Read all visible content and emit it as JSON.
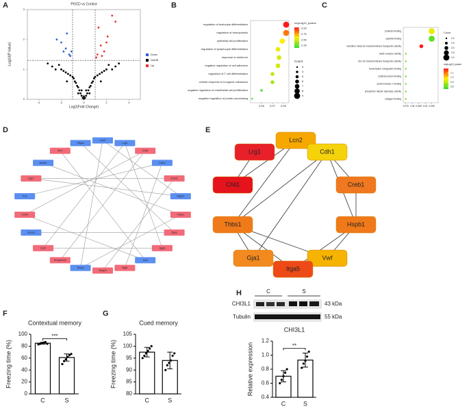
{
  "chart_data": [
    {
      "type": "scatter",
      "panel": "A",
      "title": "POCD vs Control",
      "xlabel": "Log2(Fold Change)",
      "ylabel": "-Log10(P Value)",
      "xlim": [
        -5,
        5
      ],
      "ylim": [
        0,
        3
      ],
      "xticks": [
        -4,
        -2,
        0,
        2,
        4
      ],
      "yticks": [
        0,
        1,
        2,
        3
      ],
      "thresholds_x": [
        -1,
        1
      ],
      "threshold_y": 1.3,
      "legend": "right",
      "series": [
        {
          "name": "Down",
          "color": "#2f5fd0",
          "x": [
            -1.3,
            -1.6,
            -2.0,
            -1.2,
            -1.8,
            -2.4,
            -1.5,
            -1.1
          ],
          "y": [
            1.5,
            1.7,
            1.9,
            1.45,
            1.6,
            2.0,
            2.2,
            1.6
          ]
        },
        {
          "name": "NoDiff",
          "color": "#000000",
          "x": [
            -3.2,
            -2.8,
            -2.5,
            -2.2,
            -2,
            -1.8,
            -1.6,
            -1.4,
            -1.2,
            -1,
            -0.9,
            -0.8,
            -0.7,
            -0.6,
            -0.5,
            -0.4,
            -0.3,
            -0.2,
            -0.1,
            0,
            0.1,
            0.2,
            0.3,
            0.4,
            0.5,
            0.6,
            0.7,
            0.8,
            0.9,
            1,
            1.2,
            1.4,
            1.6,
            1.8,
            2,
            2.2,
            2.5,
            2.8,
            3.1,
            -1.5,
            -0.5,
            0.5,
            1.5,
            0,
            -0.2,
            0.2
          ],
          "y": [
            1.2,
            1.1,
            1.0,
            1.15,
            1.0,
            0.95,
            0.9,
            0.85,
            0.8,
            0.75,
            0.7,
            0.6,
            0.55,
            0.45,
            0.4,
            0.3,
            0.2,
            0.12,
            0.05,
            0.02,
            0.05,
            0.12,
            0.2,
            0.3,
            0.4,
            0.45,
            0.55,
            0.6,
            0.7,
            0.75,
            0.8,
            0.85,
            0.9,
            0.95,
            1.0,
            1.15,
            1.0,
            1.1,
            1.2,
            0.6,
            0.2,
            0.2,
            0.6,
            0.1,
            0.3,
            0.3
          ]
        },
        {
          "name": "Up",
          "color": "#e8312f",
          "x": [
            1.2,
            1.5,
            1.8,
            2.1,
            1.3,
            2.5,
            1.6,
            1.1,
            2.8,
            2.0
          ],
          "y": [
            1.5,
            1.8,
            1.6,
            2.1,
            2.4,
            2.8,
            1.45,
            1.4,
            2.6,
            1.9
          ]
        }
      ]
    },
    {
      "type": "dot",
      "panel": "B",
      "categories": [
        "regulation of leukocyte differentiation",
        "regulation of hemopoiesis",
        "epithelial cell proliferation",
        "regulation of lymphocyte differentiation",
        "response to metal ion",
        "negative regulation of cell adhesion",
        "regulation of T cell differentiation",
        "cellular response to inorganic substance",
        "negative regulation of endothelial cell proliferation",
        "negative regulation of protein processing"
      ],
      "values": [
        0.095,
        0.095,
        0.088,
        0.08,
        0.082,
        0.08,
        0.07,
        0.07,
        0.05,
        0.033
      ],
      "qvalues": [
        3.05,
        2.85,
        2.6,
        2.55,
        2.5,
        2.5,
        2.45,
        2.4,
        2.2,
        2.15
      ],
      "counts": [
        9,
        9,
        8,
        7,
        7,
        7,
        6,
        6,
        4,
        3
      ],
      "xlim": [
        0.03,
        0.1
      ],
      "xticks": [
        0.05,
        0.07,
        0.09
      ],
      "clim": [
        2.15,
        3.05
      ],
      "colors": [
        "#33dd33",
        "#ffee00",
        "#ff1a1a"
      ],
      "color_title": "negLog10_qvalue",
      "color_ticks": [
        2.25,
        {
          "value": 2.5,
          "label": "2.50"
        },
        2.75,
        {
          "value": 3,
          "label": "3.00"
        }
      ],
      "size_title": "Count",
      "size_ticks": [
        3,
        4,
        5,
        6,
        7,
        8,
        9
      ]
    },
    {
      "type": "dot",
      "panel": "C",
      "categories": [
        "prolactin binding",
        "peptide binding",
        "transition metal ion transmembrane transporter activity",
        "death receptor activity",
        "zinc ion transmembrane transporter activity",
        "transcription coregulator binding",
        "scaffold protein binding",
        "protein kinase C binding",
        "phosphoric diester hydrolase activity",
        "collagen binding"
      ],
      "values": [
        0.095,
        0.095,
        0.087,
        0.075,
        0.075,
        0.075,
        0.075,
        0.075,
        0.075,
        0.075
      ],
      "qvalues": [
        0.95,
        0.8,
        1.2,
        0.8,
        0.8,
        0.8,
        0.8,
        0.8,
        0.8,
        0.8
      ],
      "counts": [
        4,
        4,
        3,
        2,
        2,
        2,
        2,
        2,
        2,
        2
      ],
      "xlim": [
        0.073,
        0.1
      ],
      "xticks": [
        0.075,
        0.08,
        0.085,
        0.09,
        0.095
      ],
      "clim": [
        0.75,
        1.2
      ],
      "colors": [
        "#33dd33",
        "#ffee00",
        "#ff1a1a"
      ],
      "color_title": "negLog10_qvalue",
      "color_ticks": [
        0.8,
        0.9,
        {
          "value": 1,
          "label": "1.0"
        },
        1.1
      ],
      "size_title": "Count",
      "size_ticks": [
        {
          "value": 2,
          "label": "2.0"
        },
        2.5,
        {
          "value": 3,
          "label": "3.0"
        },
        3.5,
        {
          "value": 4,
          "label": "4.0"
        }
      ]
    },
    {
      "type": "bar",
      "panel": "F",
      "title": "Contextual memory",
      "ylabel": "Freezing time (%)",
      "categories": [
        "C",
        "S"
      ],
      "values": [
        85,
        61
      ],
      "errors": [
        1.5,
        6
      ],
      "points": [
        [
          83,
          84,
          85,
          86,
          87,
          84
        ],
        [
          50,
          55,
          58,
          62,
          65,
          67
        ]
      ],
      "ylim": [
        0,
        100
      ],
      "yticks": [
        0,
        20,
        40,
        60,
        80,
        100
      ],
      "significance": "***",
      "color": "#ffffff"
    },
    {
      "type": "bar",
      "panel": "G",
      "title": "Cued memory",
      "ylabel": "Freezing time (%)",
      "categories": [
        "C",
        "S"
      ],
      "values": [
        97.5,
        94
      ],
      "errors": [
        2,
        3.5
      ],
      "points": [
        [
          95,
          96,
          97,
          98,
          99,
          100
        ],
        [
          90,
          92,
          93,
          94,
          96,
          97
        ]
      ],
      "ylim": [
        80,
        105
      ],
      "yticks": [
        80,
        85,
        90,
        95,
        100,
        105
      ],
      "color": "#ffffff"
    },
    {
      "type": "bar",
      "panel": "H",
      "title": "CHI3L1",
      "ylabel": "Relative expression",
      "categories": [
        "C",
        "S"
      ],
      "values": [
        0.7,
        0.93
      ],
      "errors": [
        0.08,
        0.1
      ],
      "points": [
        [
          0.6,
          0.65,
          0.7,
          0.75,
          0.8
        ],
        [
          0.82,
          0.88,
          0.92,
          0.98,
          1.05
        ]
      ],
      "ylim": [
        0.4,
        1.2
      ],
      "yticks": [
        0.4,
        0.6,
        0.8,
        {
          "value": 1,
          "label": "1.0"
        },
        1.2
      ],
      "significance": "**",
      "color": "#ffffff",
      "blot": {
        "proteins": [
          "CHI3L1",
          "Tubulin"
        ],
        "sizes": [
          "43 kDa",
          "55 kDa"
        ],
        "lanes": [
          "C",
          "S"
        ]
      }
    }
  ],
  "diagrams": [
    {
      "panel": "D",
      "nodes": [
        {
          "label": "Lcn2",
          "color": "#5b8ff0"
        },
        {
          "label": "Lrg1",
          "color": "#5b8ff0"
        },
        {
          "label": "Chil1",
          "color": "#f26b78"
        },
        {
          "label": "Cdh1",
          "color": "#5b8ff0"
        },
        {
          "label": "Creb1",
          "color": "#f26b78"
        },
        {
          "label": "Hspb1",
          "color": "#5b8ff0"
        },
        {
          "label": "Thbs1",
          "color": "#f26b78"
        },
        {
          "label": "Gja1",
          "color": "#f26b78"
        },
        {
          "label": "Itga5",
          "color": "#f26b78"
        },
        {
          "label": "Vwf",
          "color": "#5b8ff0"
        },
        {
          "label": "Ngfr",
          "color": "#f26b78"
        },
        {
          "label": "Mmp3",
          "color": "#f26b78"
        },
        {
          "label": "Timp1",
          "color": "#5b8ff0"
        },
        {
          "label": "Serpina3n",
          "color": "#f26b78"
        },
        {
          "label": "Ccl2",
          "color": "#f26b78"
        },
        {
          "label": "Socs3",
          "color": "#5b8ff0"
        },
        {
          "label": "Cd44",
          "color": "#f26b78"
        },
        {
          "label": "Fos",
          "color": "#5b8ff0"
        },
        {
          "label": "Egr2",
          "color": "#f26b78"
        },
        {
          "label": "Nr4a1",
          "color": "#5b8ff0"
        },
        {
          "label": "Il1r1",
          "color": "#f26b78"
        },
        {
          "label": "Ptgs2",
          "color": "#5b8ff0"
        }
      ],
      "edges": [
        [
          0,
          5
        ],
        [
          1,
          8
        ],
        [
          2,
          13
        ],
        [
          3,
          17
        ],
        [
          4,
          11
        ],
        [
          6,
          19
        ],
        [
          7,
          15
        ],
        [
          9,
          20
        ],
        [
          10,
          3
        ],
        [
          12,
          6
        ],
        [
          14,
          1
        ],
        [
          16,
          9
        ],
        [
          18,
          4
        ],
        [
          21,
          7
        ],
        [
          0,
          12
        ],
        [
          2,
          16
        ],
        [
          5,
          18
        ],
        [
          8,
          14
        ]
      ]
    },
    {
      "panel": "E",
      "nodes": [
        {
          "label": "Lcn2",
          "color": "#f6a800"
        },
        {
          "label": "Lrg1",
          "color": "#e8202a"
        },
        {
          "label": "Cdh1",
          "color": "#f5d30b"
        },
        {
          "label": "Chil1",
          "color": "#e5131b"
        },
        {
          "label": "Creb1",
          "color": "#f07820"
        },
        {
          "label": "Thbs1",
          "color": "#f07a1a"
        },
        {
          "label": "Hspb1",
          "color": "#f07a1a"
        },
        {
          "label": "Gja1",
          "color": "#f28a20"
        },
        {
          "label": "Vwf",
          "color": "#f6b400"
        },
        {
          "label": "Itga5",
          "color": "#ee4a18"
        }
      ],
      "edges": [
        [
          1,
          3
        ],
        [
          0,
          3
        ],
        [
          0,
          2
        ],
        [
          2,
          5
        ],
        [
          2,
          7
        ],
        [
          2,
          4
        ],
        [
          2,
          6
        ],
        [
          4,
          6
        ],
        [
          5,
          7
        ],
        [
          5,
          9
        ],
        [
          5,
          8
        ],
        [
          6,
          8
        ],
        [
          7,
          9
        ],
        [
          9,
          8
        ],
        [
          6,
          9
        ],
        [
          5,
          0
        ]
      ]
    }
  ]
}
